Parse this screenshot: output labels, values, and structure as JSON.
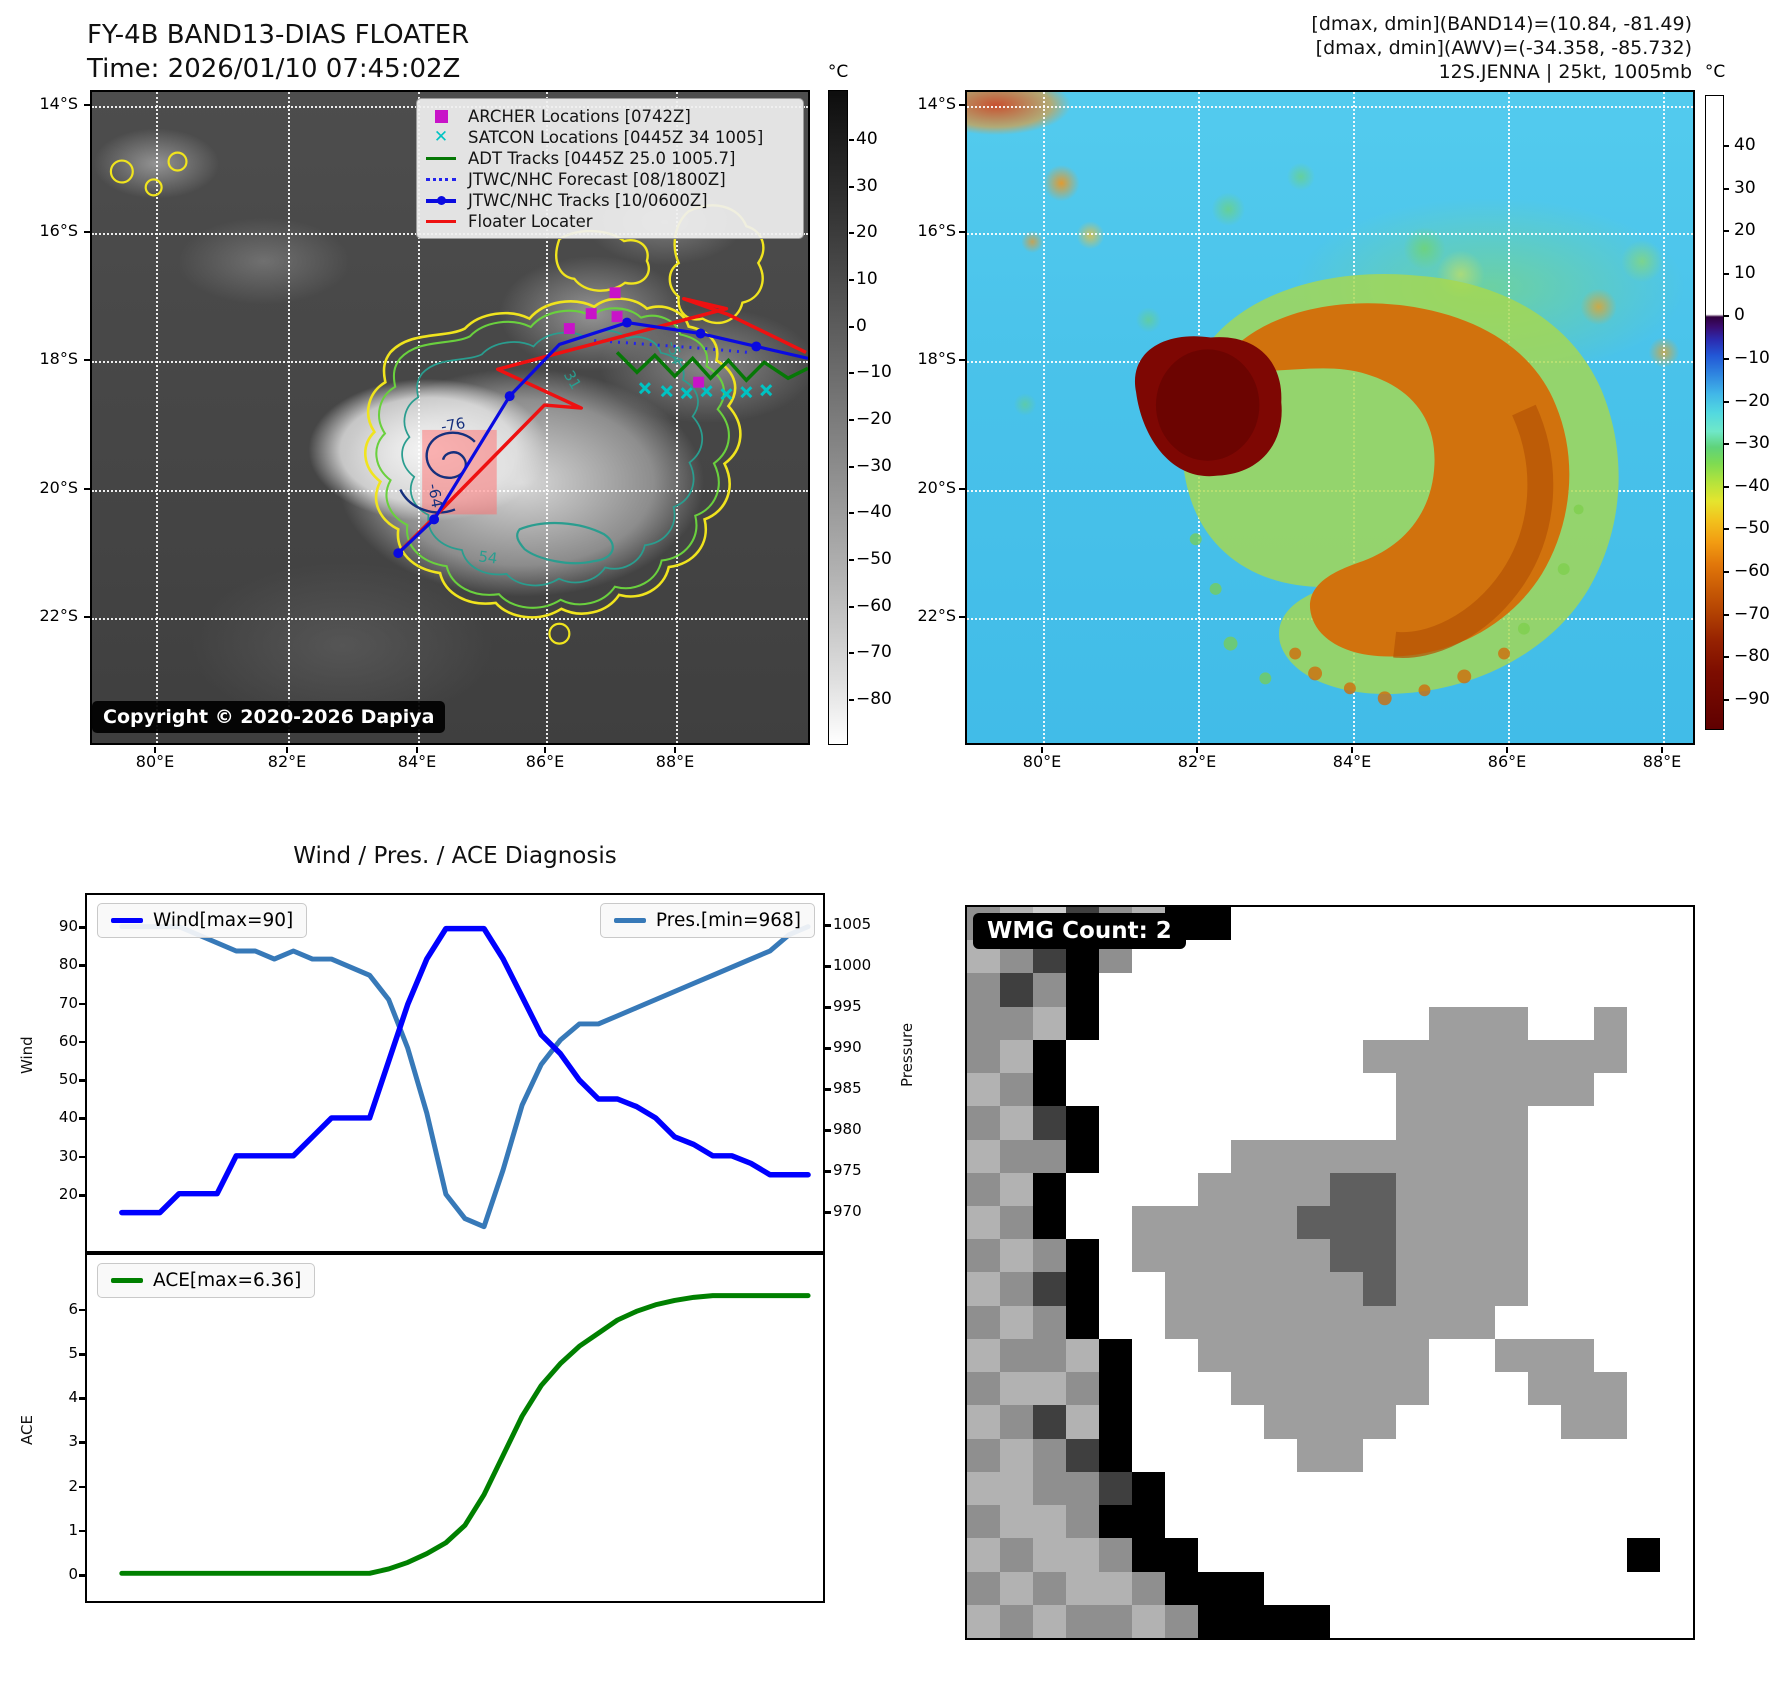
{
  "colors": {
    "wind_line": "#0000ff",
    "pressure_line": "#3779b8",
    "ace_line": "#008000",
    "archer": "#c813c8",
    "satcon": "#00c3c3",
    "adt_track": "#067806",
    "jtwc_forecast": "#2222ee",
    "jtwc_track": "#0a0ae0",
    "floater": "#ee1111",
    "highlight_box": "#ff6e6e",
    "contour_yellow": "#f0e41e",
    "contour_green": "#6ad03e",
    "contour_teal": "#2a9d8f",
    "contour_navy": "#16307d"
  },
  "panel_tl": {
    "title_line1": "FY-4B BAND13-DIAS FLOATER",
    "title_line2": "Time: 2026/01/10 07:45:02Z",
    "copyright": "Copyright © 2020-2026 Dapiya",
    "legend": [
      {
        "swatch": "archer",
        "label": "ARCHER Locations [0742Z]"
      },
      {
        "swatch": "satcon",
        "label": "SATCON Locations [0445Z 34 1005]"
      },
      {
        "swatch": "adt",
        "label": "ADT Tracks [0445Z 25.0 1005.7]"
      },
      {
        "swatch": "forecast",
        "label": "JTWC/NHC Forecast [08/1800Z]"
      },
      {
        "swatch": "track",
        "label": "JTWC/NHC Tracks [10/0600Z]"
      },
      {
        "swatch": "floater",
        "label": "Floater Locater"
      }
    ],
    "lat_ticks": [
      "14°S",
      "16°S",
      "18°S",
      "20°S",
      "22°S"
    ],
    "lon_ticks": [
      "80°E",
      "82°E",
      "84°E",
      "86°E",
      "88°E"
    ],
    "colorbar_unit": "°C",
    "colorbar_ticks": [
      "40",
      "30",
      "20",
      "10",
      "0",
      "−10",
      "−20",
      "−30",
      "−40",
      "−50",
      "−60",
      "−70",
      "−80"
    ],
    "contour_labels": [
      {
        "text": "-76",
        "color": "#16307d"
      },
      {
        "text": "-64",
        "color": "#16307d"
      },
      {
        "text": "-54",
        "color": "#2a9d8f"
      },
      {
        "text": "31",
        "color": "#2a9d8f"
      },
      {
        "text": "54",
        "color": "#2a9d8f"
      }
    ]
  },
  "panel_tr": {
    "header_line1": "[dmax, dmin](BAND14)=(10.84, -81.49)",
    "header_line2": "[dmax, dmin](AWV)=(-34.358, -85.732)",
    "header_line3": "12S.JENNA | 25kt, 1005mb",
    "lat_ticks": [
      "14°S",
      "16°S",
      "18°S",
      "20°S",
      "22°S"
    ],
    "lon_ticks": [
      "80°E",
      "82°E",
      "84°E",
      "86°E",
      "88°E"
    ],
    "colorbar_unit": "°C",
    "colorbar_ticks": [
      "40",
      "30",
      "20",
      "10",
      "0",
      "−10",
      "−20",
      "−30",
      "−40",
      "−50",
      "−60",
      "−70",
      "−80",
      "−90"
    ]
  },
  "charts": {
    "title": "Wind / Pres. / ACE Diagnosis"
  },
  "chart_data": [
    {
      "type": "line",
      "title": "Wind / Pres. / ACE Diagnosis",
      "series": [
        {
          "name": "Wind[max=90]",
          "color": "#0000ff",
          "axis": "left",
          "values": [
            15,
            15,
            15,
            20,
            20,
            20,
            30,
            30,
            30,
            30,
            35,
            40,
            40,
            40,
            55,
            70,
            82,
            90,
            90,
            90,
            82,
            72,
            62,
            57,
            50,
            45,
            45,
            43,
            40,
            35,
            33,
            30,
            30,
            28,
            25,
            25,
            25
          ]
        },
        {
          "name": "Pres.[min=968]",
          "color": "#3779b8",
          "axis": "right",
          "values": [
            1005,
            1005,
            1005,
            1005,
            1004,
            1003,
            1002,
            1002,
            1001,
            1002,
            1001,
            1001,
            1000,
            999,
            996,
            990,
            982,
            972,
            969,
            968,
            975,
            983,
            988,
            991,
            993,
            993,
            994,
            995,
            996,
            997,
            998,
            999,
            1000,
            1001,
            1002,
            1004,
            1005
          ]
        }
      ],
      "left_axis": {
        "label": "Wind",
        "ticks": [
          90,
          80,
          70,
          60,
          50,
          40,
          30,
          20
        ]
      },
      "right_axis": {
        "label": "Pressure",
        "ticks": [
          1005,
          1000,
          995,
          990,
          985,
          980,
          975,
          970
        ]
      },
      "legend_position": "upper-left-and-upper-right",
      "grid": false
    },
    {
      "type": "line",
      "series": [
        {
          "name": "ACE[max=6.36]",
          "color": "#008000",
          "axis": "left",
          "values": [
            0,
            0,
            0,
            0,
            0,
            0,
            0,
            0,
            0,
            0,
            0,
            0,
            0,
            0,
            0.1,
            0.25,
            0.45,
            0.7,
            1.1,
            1.8,
            2.7,
            3.6,
            4.3,
            4.8,
            5.2,
            5.5,
            5.8,
            6.0,
            6.15,
            6.25,
            6.32,
            6.36,
            6.36,
            6.36,
            6.36,
            6.36,
            6.36
          ]
        }
      ],
      "left_axis": {
        "label": "ACE",
        "ticks": [
          6,
          5,
          4,
          3,
          2,
          1,
          0
        ]
      },
      "legend_position": "upper-left",
      "grid": false
    }
  ],
  "panel_br": {
    "badge": "WMG Count: 2",
    "palette": {
      "0": "#ffffff",
      "1": "#b2b2b2",
      "2": "#8f8f8f",
      "3": "#9e9e9e",
      "4": "#3f3f3f",
      "5": "#000000",
      "6": "#5f5f5f",
      "7": "#cdcdcd"
    },
    "rows": [
      "2174215500000000000000",
      "1245200000000000000000",
      "2425000000000000000000",
      "2215000000000033300300",
      "2150000000003333333300",
      "1250000000000333333000",
      "2145000000000333300000",
      "1225000033333333300000",
      "2150000333366333300000",
      "1250033333666333300000",
      "2125033333366333300000",
      "1245003333336333300000",
      "2125003333333333000000",
      "1221500333333300333000",
      "2112500033333300033300",
      "1241500003333000003300",
      "2124500000330000000000",
      "1122450000000000000000",
      "2112550000000000000000",
      "1211255000000000000050",
      "2121125550000000000000",
      "1212212555500000000000"
    ]
  }
}
